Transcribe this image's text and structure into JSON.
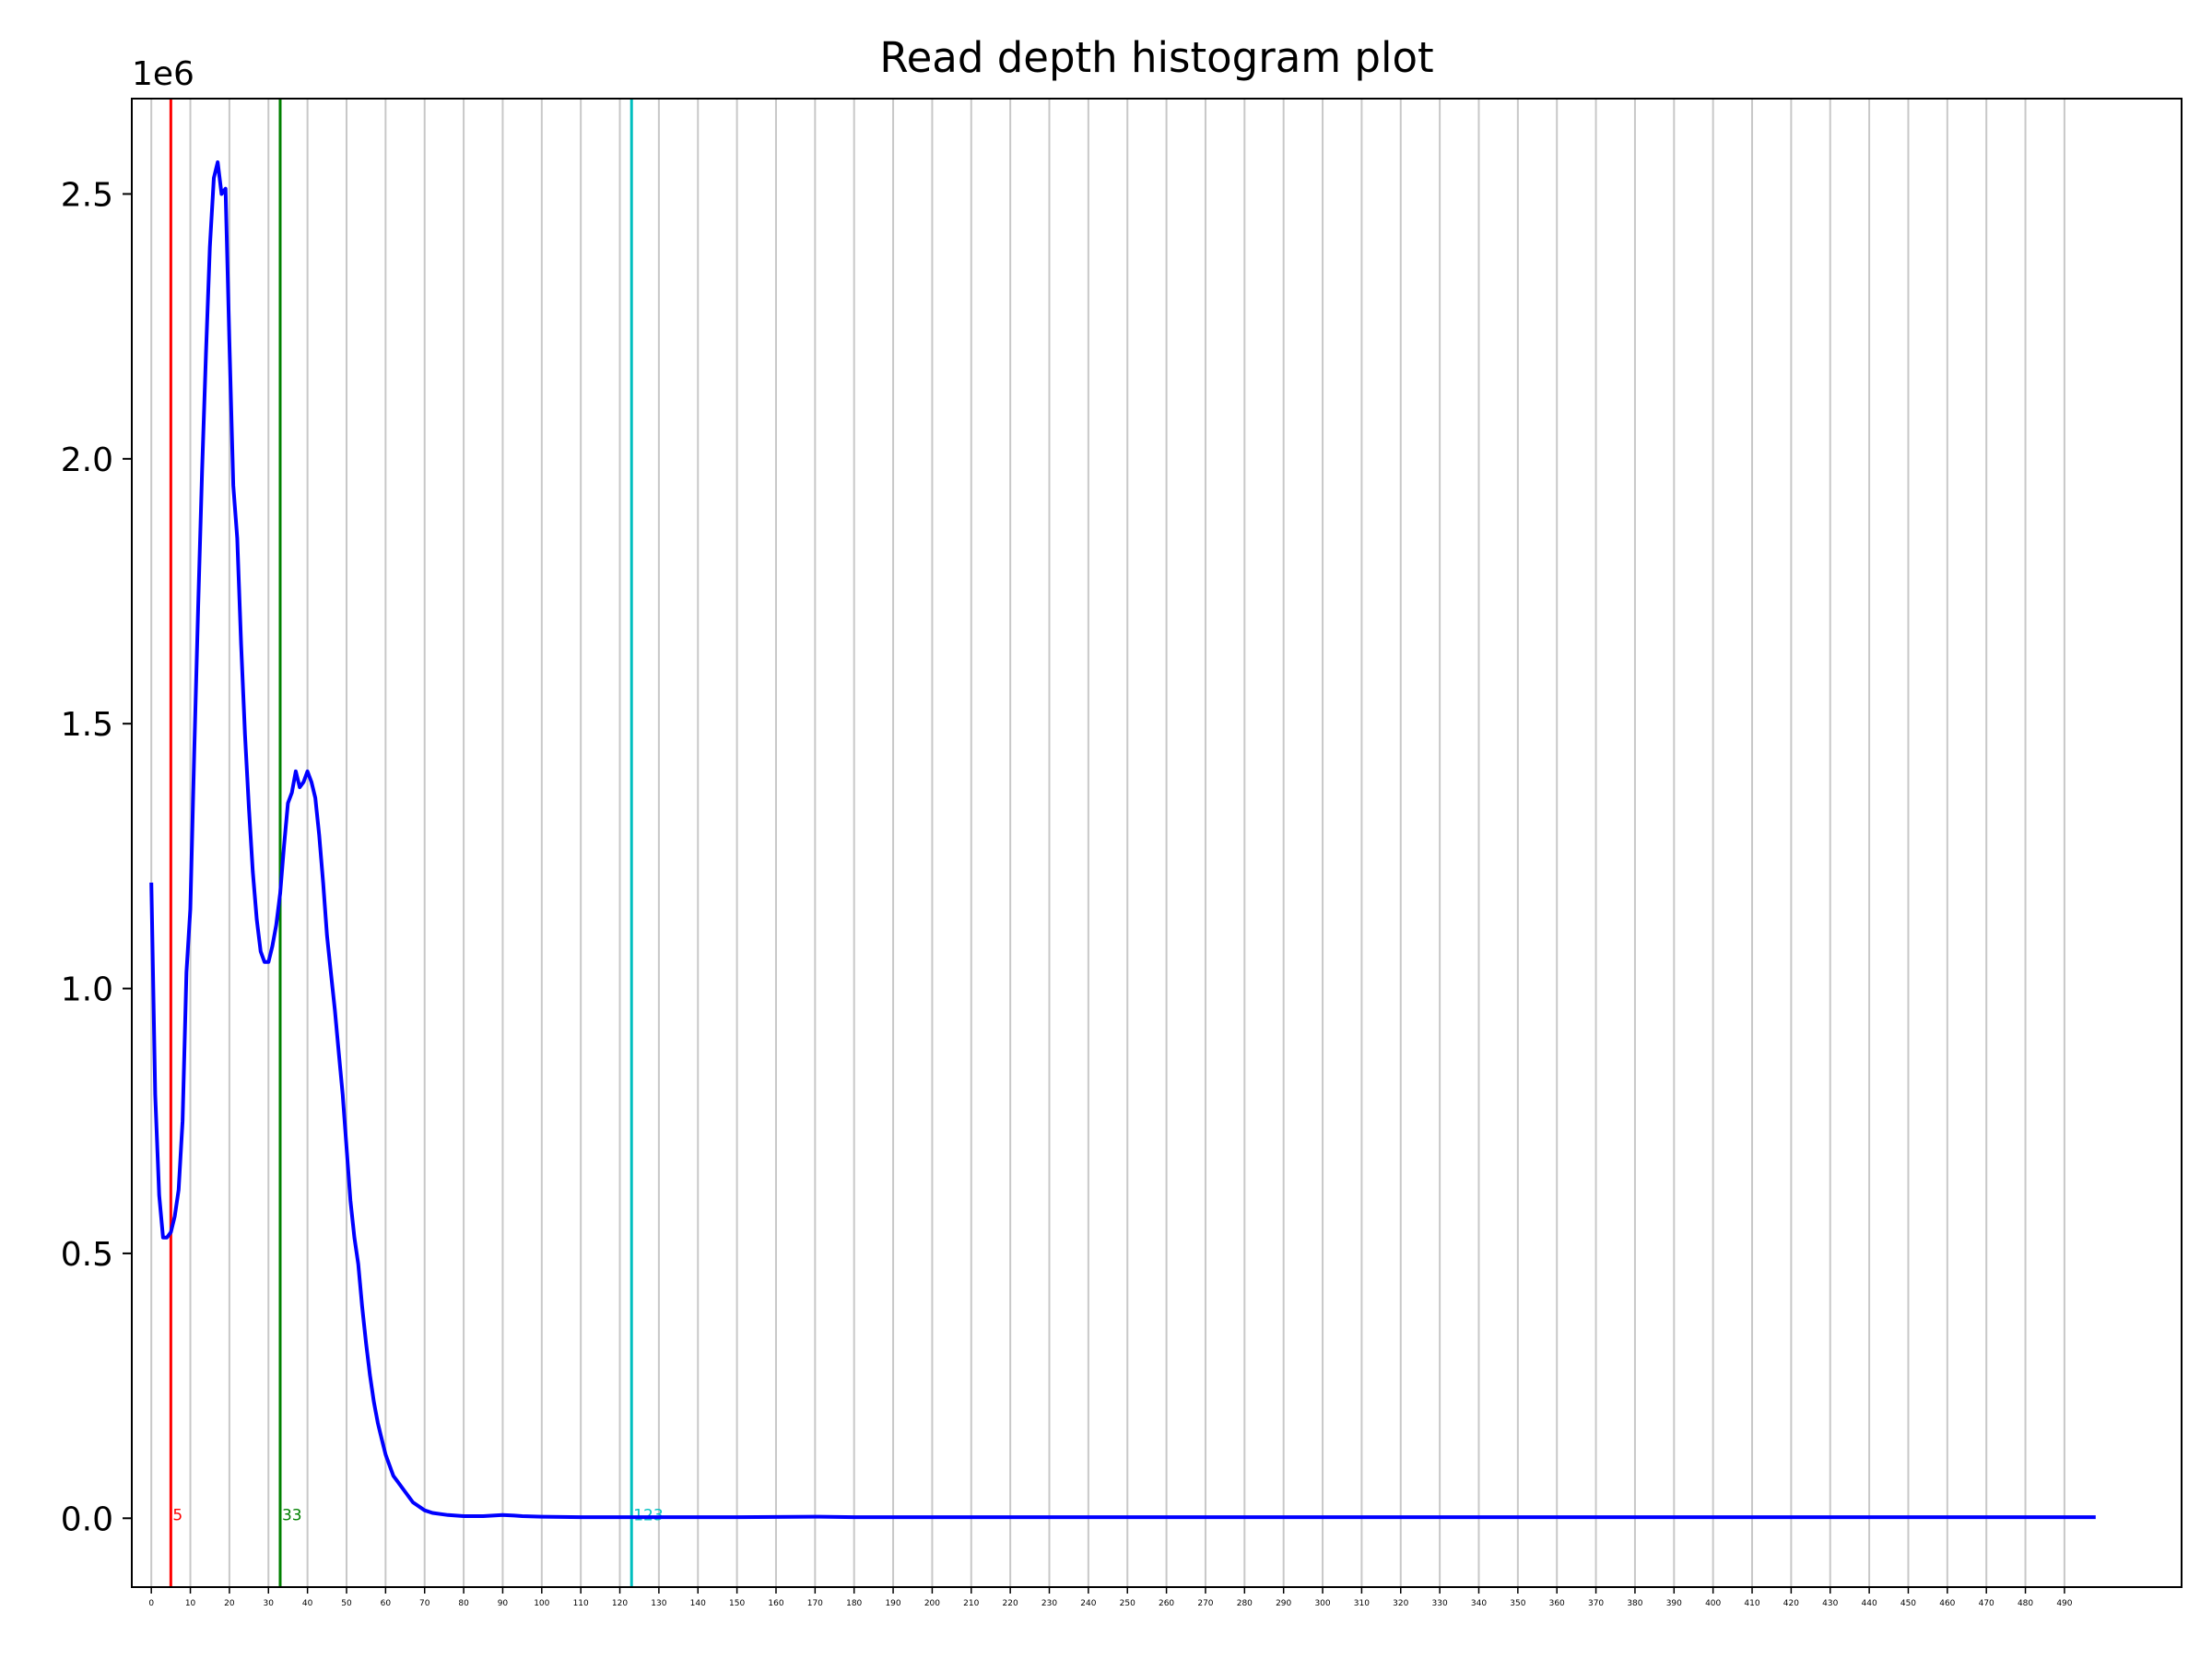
{
  "chart_data": {
    "type": "line",
    "title": "Read depth histogram plot",
    "xlabel": "",
    "ylabel": "",
    "y_offset_label": "1e6",
    "xlim": [
      -5,
      520
    ],
    "ylim": [
      -0.13,
      2.68
    ],
    "y_ticks": [
      0.0,
      0.5,
      1.0,
      1.5,
      2.0,
      2.5
    ],
    "y_tick_labels": [
      "0.0",
      "0.5",
      "1.0",
      "1.5",
      "2.0",
      "2.5"
    ],
    "x_ticks": [
      0,
      10,
      20,
      30,
      40,
      50,
      60,
      70,
      80,
      90,
      100,
      110,
      120,
      130,
      140,
      150,
      160,
      170,
      180,
      190,
      200,
      210,
      220,
      230,
      240,
      250,
      260,
      270,
      280,
      290,
      300,
      310,
      320,
      330,
      340,
      350,
      360,
      370,
      380,
      390,
      400,
      410,
      420,
      430,
      440,
      450,
      460,
      470,
      480,
      490
    ],
    "x_tick_labels": [
      "0",
      "10",
      "20",
      "30",
      "40",
      "50",
      "60",
      "70",
      "80",
      "90",
      "100",
      "110",
      "120",
      "130",
      "140",
      "150",
      "160",
      "170",
      "180",
      "190",
      "200",
      "210",
      "220",
      "230",
      "240",
      "250",
      "260",
      "270",
      "280",
      "290",
      "300",
      "310",
      "320",
      "330",
      "340",
      "350",
      "360",
      "370",
      "380",
      "390",
      "400",
      "410",
      "420",
      "430",
      "440",
      "450",
      "460",
      "470",
      "480",
      "490"
    ],
    "grid": "vertical",
    "series": [
      {
        "color": "#0000ff",
        "x": [
          0,
          1,
          2,
          3,
          4,
          5,
          6,
          7,
          8,
          9,
          10,
          11,
          12,
          13,
          14,
          15,
          16,
          17,
          18,
          19,
          20,
          21,
          22,
          23,
          24,
          25,
          26,
          27,
          28,
          29,
          30,
          31,
          32,
          33,
          34,
          35,
          36,
          37,
          38,
          39,
          40,
          41,
          42,
          43,
          44,
          45,
          46,
          47,
          48,
          49,
          50,
          51,
          52,
          53,
          54,
          55,
          56,
          57,
          58,
          59,
          60,
          61,
          62,
          63,
          64,
          65,
          66,
          67,
          68,
          69,
          70,
          72,
          74,
          76,
          78,
          80,
          85,
          90,
          93,
          95,
          100,
          110,
          120,
          130,
          150,
          170,
          180,
          200,
          250,
          300,
          350,
          400,
          450,
          498
        ],
        "y": [
          1.2,
          0.8,
          0.61,
          0.53,
          0.53,
          0.54,
          0.57,
          0.62,
          0.75,
          1.03,
          1.15,
          1.45,
          1.72,
          1.98,
          2.2,
          2.4,
          2.53,
          2.56,
          2.5,
          2.51,
          2.22,
          1.95,
          1.85,
          1.65,
          1.48,
          1.34,
          1.22,
          1.13,
          1.07,
          1.05,
          1.05,
          1.08,
          1.12,
          1.18,
          1.27,
          1.35,
          1.37,
          1.41,
          1.38,
          1.39,
          1.41,
          1.39,
          1.36,
          1.29,
          1.2,
          1.1,
          1.03,
          0.96,
          0.88,
          0.8,
          0.7,
          0.6,
          0.53,
          0.48,
          0.4,
          0.33,
          0.27,
          0.22,
          0.18,
          0.15,
          0.12,
          0.1,
          0.08,
          0.07,
          0.06,
          0.05,
          0.04,
          0.03,
          0.025,
          0.02,
          0.015,
          0.01,
          0.008,
          0.006,
          0.005,
          0.004,
          0.004,
          0.006,
          0.005,
          0.004,
          0.003,
          0.002,
          0.002,
          0.002,
          0.002,
          0.003,
          0.002,
          0.002,
          0.002,
          0.002,
          0.002,
          0.002,
          0.002,
          0.002
        ]
      }
    ],
    "vertical_lines": [
      {
        "x": 5,
        "color": "#ff0000",
        "label": "5"
      },
      {
        "x": 33,
        "color": "#008000",
        "label": "33"
      },
      {
        "x": 123,
        "color": "#00bfbf",
        "label": "123"
      }
    ]
  }
}
